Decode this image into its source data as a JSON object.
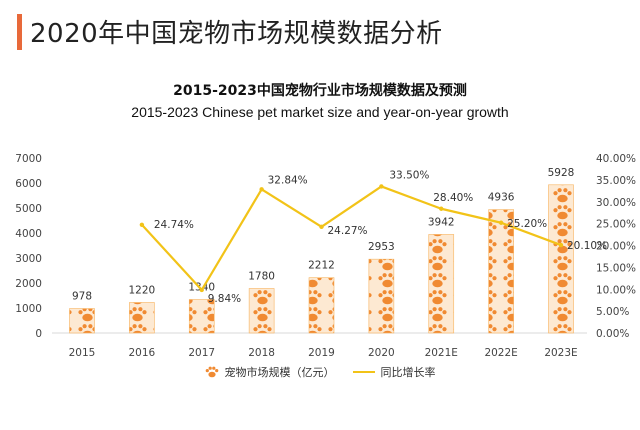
{
  "header": {
    "title": "2020年中国宠物市场规模数据分析"
  },
  "colors": {
    "accent": "#e8693a",
    "bar": "#f08a32",
    "bar_light": "#f7b35e",
    "line": "#f2c318"
  },
  "chart_data": {
    "type": "bar",
    "title": "2015-2023中国宠物行业市场规模数据及预测",
    "subtitle": "2015-2023 Chinese pet market size and year-on-year growth",
    "categories": [
      "2015",
      "2016",
      "2017",
      "2018",
      "2019",
      "2020",
      "2021E",
      "2022E",
      "2023E"
    ],
    "series": [
      {
        "name": "宠物市场规模（亿元）",
        "type": "bar",
        "axis": "left",
        "values": [
          978,
          1220,
          1340,
          1780,
          2212,
          2953,
          3942,
          4936,
          5928
        ],
        "labels": [
          "978",
          "1220",
          "1340",
          "1780",
          "2212",
          "2953",
          "3942",
          "4936",
          "5928"
        ]
      },
      {
        "name": "同比增长率",
        "type": "line",
        "axis": "right",
        "values": [
          null,
          24.74,
          9.84,
          32.84,
          24.27,
          33.5,
          28.4,
          25.2,
          20.1
        ],
        "labels": [
          "",
          "24.74%",
          "9.84%",
          "32.84%",
          "24.27%",
          "33.50%",
          "28.40%",
          "25.20%",
          "20.10%"
        ]
      }
    ],
    "y_left": {
      "min": 0,
      "max": 7000,
      "ticks": [
        "0",
        "1000",
        "2000",
        "3000",
        "4000",
        "5000",
        "6000",
        "7000"
      ]
    },
    "y_right": {
      "min": 0,
      "max": 40,
      "ticks": [
        "0.00%",
        "5.00%",
        "10.00%",
        "15.00%",
        "20.00%",
        "25.00%",
        "30.00%",
        "35.00%",
        "40.00%"
      ]
    },
    "grid": false,
    "legend": "bottom-center"
  }
}
